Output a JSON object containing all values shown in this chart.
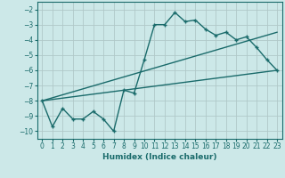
{
  "xlabel": "Humidex (Indice chaleur)",
  "background_color": "#cce8e8",
  "grid_color": "#b0c8c8",
  "line_color": "#1a6b6b",
  "xlim": [
    -0.5,
    23.5
  ],
  "ylim": [
    -10.5,
    -1.5
  ],
  "yticks": [
    -10,
    -9,
    -8,
    -7,
    -6,
    -5,
    -4,
    -3,
    -2
  ],
  "xtick_labels": [
    "0",
    "1",
    "2",
    "3",
    "4",
    "5",
    "6",
    "7",
    "8",
    "9",
    "10",
    "11",
    "12",
    "13",
    "14",
    "15",
    "16",
    "17",
    "18",
    "19",
    "20",
    "21",
    "22",
    "23"
  ],
  "xtick_vals": [
    0,
    1,
    2,
    3,
    4,
    5,
    6,
    7,
    8,
    9,
    10,
    11,
    12,
    13,
    14,
    15,
    16,
    17,
    18,
    19,
    20,
    21,
    22,
    23
  ],
  "series1_x": [
    0,
    1,
    2,
    3,
    4,
    5,
    6,
    7,
    8,
    9,
    10,
    11,
    12,
    13,
    14,
    15,
    16,
    17,
    18,
    19,
    20,
    21,
    22,
    23
  ],
  "series1_y": [
    -8.0,
    -9.7,
    -8.5,
    -9.2,
    -9.2,
    -8.7,
    -9.2,
    -10.0,
    -7.3,
    -7.5,
    -5.3,
    -3.0,
    -3.0,
    -2.2,
    -2.8,
    -2.7,
    -3.3,
    -3.7,
    -3.5,
    -4.0,
    -3.8,
    -4.5,
    -5.3,
    -6.0
  ],
  "series2_x": [
    0,
    23
  ],
  "series2_y": [
    -8.0,
    -3.5
  ],
  "series3_x": [
    0,
    23
  ],
  "series3_y": [
    -8.0,
    -6.0
  ]
}
